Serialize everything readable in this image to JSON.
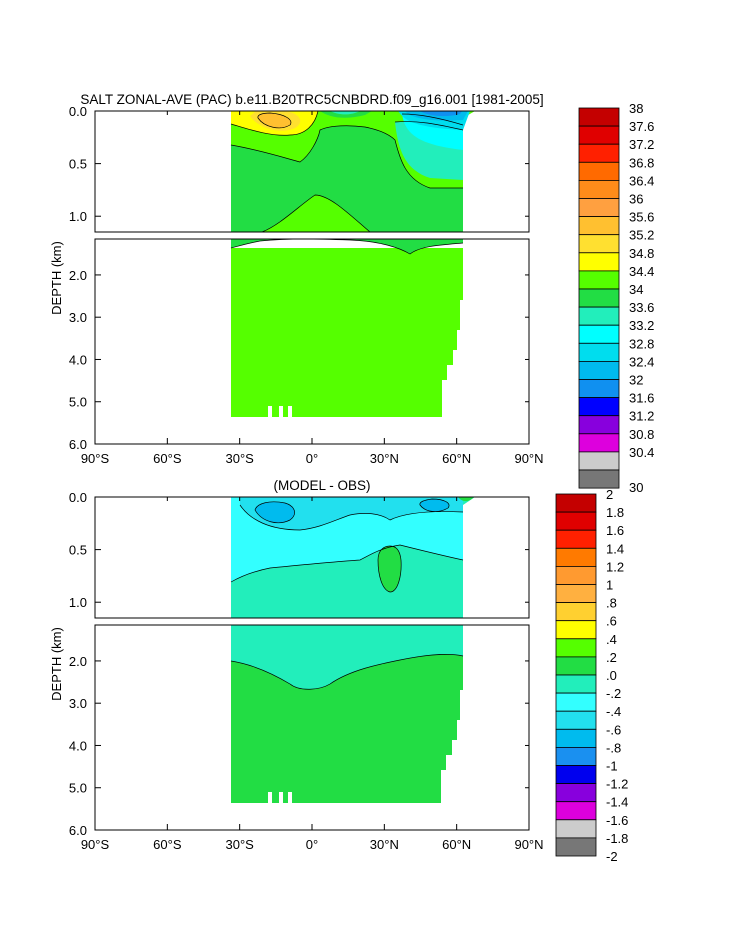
{
  "chart_data": [
    {
      "type": "heatmap",
      "title": "SALT ZONAL-AVE (PAC) b.e11.B20TRC5CNBDRD.f09_g16.001 [1981-2005]",
      "ylabel": "DEPTH (km)",
      "x_ticks": [
        "90°S",
        "60°S",
        "30°S",
        "0°",
        "30°N",
        "60°N",
        "90°N"
      ],
      "x_values": [
        -90,
        -60,
        -30,
        0,
        30,
        60,
        90
      ],
      "y_ticks_upper": [
        "0.0",
        "0.5",
        "1.0"
      ],
      "y_values_upper": [
        0.0,
        0.5,
        1.0
      ],
      "y_ticks_lower": [
        "2.0",
        "3.0",
        "4.0",
        "5.0",
        "6.0"
      ],
      "y_values_lower": [
        2.0,
        3.0,
        4.0,
        5.0,
        6.0
      ],
      "xlim": [
        -90,
        90
      ],
      "ylim_upper": [
        0,
        1.15
      ],
      "ylim_lower": [
        1.15,
        6.0
      ],
      "colorbar_labels": [
        "38",
        "37.6",
        "37.2",
        "36.8",
        "36.4",
        "36",
        "35.6",
        "35.2",
        "34.8",
        "34.4",
        "34",
        "33.6",
        "33.2",
        "32.8",
        "32.4",
        "32",
        "31.6",
        "31.2",
        "30.8",
        "30.4",
        "30"
      ],
      "colorbar_colors": [
        "#c40000",
        "#e00000",
        "#ff2000",
        "#ff6a00",
        "#ff8c1a",
        "#ffa040",
        "#ffc030",
        "#ffe030",
        "#ffff00",
        "#55ff00",
        "#22dd44",
        "#22eebb",
        "#00ffff",
        "#00ddee",
        "#00bbee",
        "#1090f0",
        "#0000ff",
        "#8800dd",
        "#dd00dd",
        "#cccccc",
        "#777777"
      ]
    },
    {
      "type": "heatmap",
      "title": "(MODEL - OBS)",
      "ylabel": "DEPTH (km)",
      "x_ticks": [
        "90°S",
        "60°S",
        "30°S",
        "0°",
        "30°N",
        "60°N",
        "90°N"
      ],
      "x_values": [
        -90,
        -60,
        -30,
        0,
        30,
        60,
        90
      ],
      "y_ticks_upper": [
        "0.0",
        "0.5",
        "1.0"
      ],
      "y_values_upper": [
        0.0,
        0.5,
        1.0
      ],
      "y_ticks_lower": [
        "2.0",
        "3.0",
        "4.0",
        "5.0",
        "6.0"
      ],
      "y_values_lower": [
        2.0,
        3.0,
        4.0,
        5.0,
        6.0
      ],
      "xlim": [
        -90,
        90
      ],
      "ylim_upper": [
        0,
        1.15
      ],
      "ylim_lower": [
        1.15,
        6.0
      ],
      "colorbar_labels": [
        "2",
        "1.8",
        "1.6",
        "1.4",
        "1.2",
        "1",
        ".8",
        ".6",
        ".4",
        ".2",
        ".0",
        "-.2",
        "-.4",
        "-.6",
        "-.8",
        "-1",
        "-1.2",
        "-1.4",
        "-1.6",
        "-1.8",
        "-2"
      ],
      "colorbar_colors": [
        "#c40000",
        "#e00000",
        "#ff2000",
        "#ff7a00",
        "#ff9a30",
        "#ffb040",
        "#ffd030",
        "#ffff00",
        "#55ff00",
        "#22dd44",
        "#22eebb",
        "#33ffff",
        "#22e0ee",
        "#00bbee",
        "#1a90f0",
        "#0000ee",
        "#8800dd",
        "#dd00dd",
        "#cccccc",
        "#777777"
      ]
    }
  ]
}
